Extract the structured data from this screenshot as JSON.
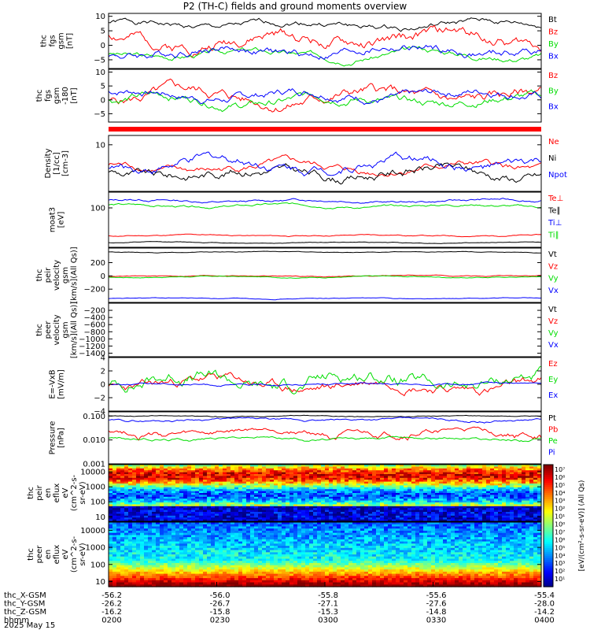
{
  "title": "P2 (TH-C) fields and ground moments overview",
  "colors": {
    "black": "#000000",
    "red": "#ff0000",
    "green": "#00dd00",
    "blue": "#0000ff",
    "lime": "#00ff00"
  },
  "chart_data": [
    {
      "id": "fgs-gsm",
      "type": "line",
      "ylabel": [
        "thc",
        "fgs",
        "gsm",
        "[nT]"
      ],
      "ylim": [
        -8,
        11
      ],
      "yticks": [
        10,
        5,
        0,
        -5
      ],
      "series": [
        {
          "name": "Bt",
          "color": "#000000",
          "base": 7,
          "amp": 2.0,
          "seed": 1
        },
        {
          "name": "Bz",
          "color": "#ff0000",
          "base": 2,
          "amp": 4.0,
          "seed": 2
        },
        {
          "name": "By",
          "color": "#00dd00",
          "base": -3,
          "amp": 2.0,
          "seed": 3
        },
        {
          "name": "Bx",
          "color": "#0000ff",
          "base": -2,
          "amp": 3.0,
          "seed": 4
        }
      ]
    },
    {
      "id": "fgs-gsm-1",
      "type": "line",
      "ylabel": [
        "thc",
        "fgs",
        "gsm",
        "-180",
        "[nT]"
      ],
      "ylim": [
        -8,
        11
      ],
      "yticks": [
        10,
        5,
        0,
        -5
      ],
      "series": [
        {
          "name": "Bz",
          "color": "#ff0000",
          "base": 1,
          "amp": 4.0,
          "seed": 5
        },
        {
          "name": "By",
          "color": "#00dd00",
          "base": 0,
          "amp": 3.0,
          "seed": 6
        },
        {
          "name": "Bx",
          "color": "#0000ff",
          "base": 2,
          "amp": 3.0,
          "seed": 7
        }
      ]
    },
    {
      "id": "density",
      "type": "line",
      "ylabel": [
        "Density",
        "[1/cc]",
        "[cm-3]"
      ],
      "ylim": [
        0,
        12
      ],
      "yticks": [
        10
      ],
      "series": [
        {
          "name": "Ne",
          "color": "#ff0000",
          "base": 5,
          "amp": 1.5,
          "seed": 8
        },
        {
          "name": "Ni",
          "color": "#000000",
          "base": 4,
          "amp": 2.0,
          "seed": 9
        },
        {
          "name": "Npot",
          "color": "#0000ff",
          "base": 6,
          "amp": 2.0,
          "seed": 10
        }
      ]
    },
    {
      "id": "temp",
      "type": "line",
      "ylabel": [
        "moat3",
        "[eV]"
      ],
      "ylim": [
        0,
        140
      ],
      "yticks": [
        100
      ],
      "series": [
        {
          "name": "Te⊥",
          "color": "#ff0000",
          "base": 30,
          "amp": 3,
          "seed": 11
        },
        {
          "name": "Te∥",
          "color": "#000000",
          "base": 12,
          "amp": 2,
          "seed": 12
        },
        {
          "name": "Ti⊥",
          "color": "#0000ff",
          "base": 118,
          "amp": 6,
          "seed": 13
        },
        {
          "name": "Ti∥",
          "color": "#00dd00",
          "base": 105,
          "amp": 6,
          "seed": 14
        }
      ]
    },
    {
      "id": "peir-vel",
      "type": "line",
      "ylabel": [
        "thc",
        "peir",
        "velocity",
        "gsm",
        "[km/s](All Qs)]"
      ],
      "ylim": [
        -400,
        420
      ],
      "yticks": [
        200,
        0,
        -200
      ],
      "series": [
        {
          "name": "Vt",
          "color": "#000000",
          "base": 360,
          "amp": 10,
          "seed": 15
        },
        {
          "name": "Vz",
          "color": "#ff0000",
          "base": 0,
          "amp": 15,
          "seed": 16
        },
        {
          "name": "Vy",
          "color": "#00dd00",
          "base": -15,
          "amp": 15,
          "seed": 17
        },
        {
          "name": "Vx",
          "color": "#0000ff",
          "base": -340,
          "amp": 12,
          "seed": 18
        }
      ]
    },
    {
      "id": "peer-vel",
      "type": "line",
      "ylabel": [
        "thc",
        "peer",
        "velocity",
        "gsm",
        "[km/s](All Qs)]"
      ],
      "ylim": [
        -1500,
        0
      ],
      "yticks": [
        -200,
        -400,
        -600,
        -800,
        -1000,
        -1200,
        -1400
      ],
      "series": [
        {
          "name": "Vt",
          "color": "#000000",
          "base": 0,
          "amp": 0,
          "seed": 19
        },
        {
          "name": "Vz",
          "color": "#ff0000",
          "base": 0,
          "amp": 0,
          "seed": 20
        },
        {
          "name": "Vy",
          "color": "#00dd00",
          "base": 0,
          "amp": 0,
          "seed": 21
        },
        {
          "name": "Vx",
          "color": "#0000ff",
          "base": 0,
          "amp": 0,
          "seed": 22
        }
      ]
    },
    {
      "id": "efield",
      "type": "line",
      "ylabel": [
        "E=-VxB",
        "[mV/m]"
      ],
      "ylim": [
        -4,
        4
      ],
      "yticks": [
        4,
        2,
        0,
        -2,
        -4
      ],
      "series": [
        {
          "name": "Ez",
          "color": "#ff0000",
          "base": 0,
          "amp": 1.5,
          "seed": 23
        },
        {
          "name": "Ey",
          "color": "#00dd00",
          "base": 0.5,
          "amp": 2.0,
          "seed": 24
        },
        {
          "name": "Ex",
          "color": "#0000ff",
          "base": 0,
          "amp": 0.3,
          "seed": 25
        }
      ]
    },
    {
      "id": "pressure",
      "type": "line",
      "ylabel": [
        "Pressure",
        "[nPa]"
      ],
      "scale": "log",
      "ylim": [
        0.001,
        0.15
      ],
      "yticks": [
        0.1,
        0.01,
        0.001
      ],
      "yticklabels": [
        "0.100",
        "0.010",
        "0.001"
      ],
      "series": [
        {
          "name": "Pt",
          "color": "#000000",
          "base": 0.1,
          "amp": 0.01,
          "seed": 26
        },
        {
          "name": "Pb",
          "color": "#ff0000",
          "base": 0.02,
          "amp": 0.012,
          "seed": 27
        },
        {
          "name": "Pe",
          "color": "#00dd00",
          "base": 0.012,
          "amp": 0.003,
          "seed": 28
        },
        {
          "name": "Pi",
          "color": "#0000ff",
          "base": 0.07,
          "amp": 0.015,
          "seed": 29
        }
      ]
    },
    {
      "id": "peir-eflux",
      "type": "heatmap",
      "ylabel": [
        "thc",
        "peir",
        "en",
        "eflux",
        "eV",
        "(cm^2-s-",
        "sr-eV)"
      ],
      "scale": "log",
      "ylim": [
        5,
        30000
      ],
      "yticks": [
        10000,
        1000,
        100,
        10
      ],
      "yticklabels": [
        "10000",
        "1000",
        "100",
        "10"
      ]
    },
    {
      "id": "peer-eflux",
      "type": "heatmap",
      "ylabel": [
        "thc",
        "peer",
        "en",
        "eflux",
        "eV",
        "(cm^2-s-",
        "sr-eV)"
      ],
      "scale": "log",
      "ylim": [
        5,
        30000
      ],
      "yticks": [
        10000,
        1000,
        100,
        10
      ],
      "yticklabels": [
        "10000",
        "1000",
        "100",
        "10"
      ]
    }
  ],
  "colorbar": {
    "labels": [
      "10⁷",
      "10⁶",
      "10⁵",
      "10⁴",
      "10³",
      "10²",
      "10¹",
      "10⁰",
      "10⁷",
      "10⁶",
      "10⁵",
      "10⁴",
      "10³",
      "10²",
      "10¹"
    ],
    "unit": "[eV/(cm²-s-sr-eV)] (All Qs)"
  },
  "x_axis": {
    "ticks": [
      "0200",
      "0230",
      "0300",
      "0330",
      "0400"
    ],
    "rows": [
      {
        "label": "thc_X-GSM",
        "values": [
          "-56.2",
          "-56.0",
          "-55.8",
          "-55.6",
          "-55.4"
        ]
      },
      {
        "label": "thc_Y-GSM",
        "values": [
          "-26.2",
          "-26.7",
          "-27.1",
          "-27.6",
          "-28.0"
        ]
      },
      {
        "label": "thc_Z-GSM",
        "values": [
          "-16.2",
          "-15.8",
          "-15.3",
          "-14.8",
          "-14.2"
        ]
      },
      {
        "label": "hhmm",
        "values": [
          "0200",
          "0230",
          "0300",
          "0330",
          "0400"
        ]
      }
    ],
    "date": "2025 May 15"
  }
}
